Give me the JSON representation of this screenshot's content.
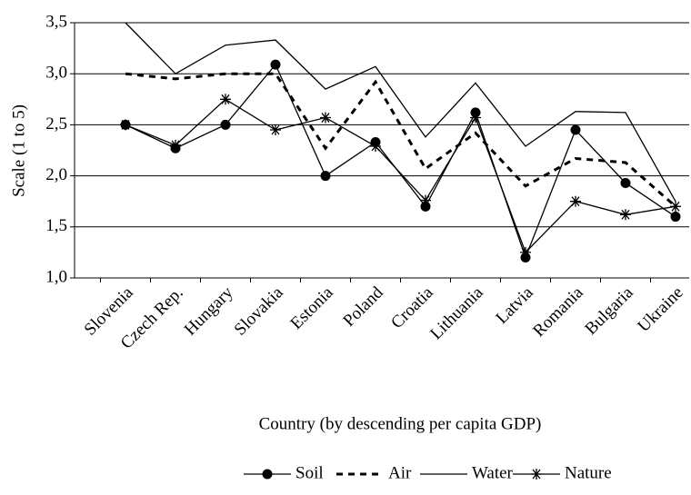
{
  "chart_data": {
    "type": "line",
    "x_label": "Country (by descending per capita GDP)",
    "y_label": "Scale (1 to 5)",
    "categories": [
      "Slovenia",
      "Czech Rep.",
      "Hungary",
      "Slovakia",
      "Estonia",
      "Poland",
      "Croatia",
      "Lithuania",
      "Latvia",
      "Romania",
      "Bulgaria",
      "Ukraine"
    ],
    "ylim": [
      1.0,
      3.5
    ],
    "yticks": [
      {
        "value": 1.0,
        "label": "1,0"
      },
      {
        "value": 1.5,
        "label": "1,5"
      },
      {
        "value": 2.0,
        "label": "2,0"
      },
      {
        "value": 2.5,
        "label": "2,5"
      },
      {
        "value": 3.0,
        "label": "3,0"
      },
      {
        "value": 3.5,
        "label": "3,5"
      }
    ],
    "grid": true,
    "legend": "bottom",
    "series": [
      {
        "name": "Soil",
        "color": "#000000",
        "marker": "circle",
        "dash": false,
        "values": [
          2.5,
          2.27,
          2.5,
          3.09,
          2.0,
          2.33,
          1.7,
          2.62,
          1.2,
          2.45,
          1.93,
          1.6
        ]
      },
      {
        "name": "Air",
        "color": "#000000",
        "marker": "none",
        "dash": true,
        "values": [
          3.0,
          2.95,
          3.0,
          3.0,
          2.27,
          2.92,
          2.07,
          2.42,
          1.9,
          2.17,
          2.13,
          1.7
        ]
      },
      {
        "name": "Water",
        "color": "#000000",
        "marker": "none",
        "dash": false,
        "values": [
          3.5,
          3.0,
          3.28,
          3.33,
          2.85,
          3.07,
          2.38,
          2.91,
          2.29,
          2.63,
          2.62,
          1.75
        ]
      },
      {
        "name": "Nature",
        "color": "#000000",
        "marker": "asterisk",
        "dash": false,
        "values": [
          2.5,
          2.3,
          2.75,
          2.45,
          2.57,
          2.29,
          1.76,
          2.57,
          1.25,
          1.75,
          1.62,
          1.7
        ]
      }
    ]
  }
}
